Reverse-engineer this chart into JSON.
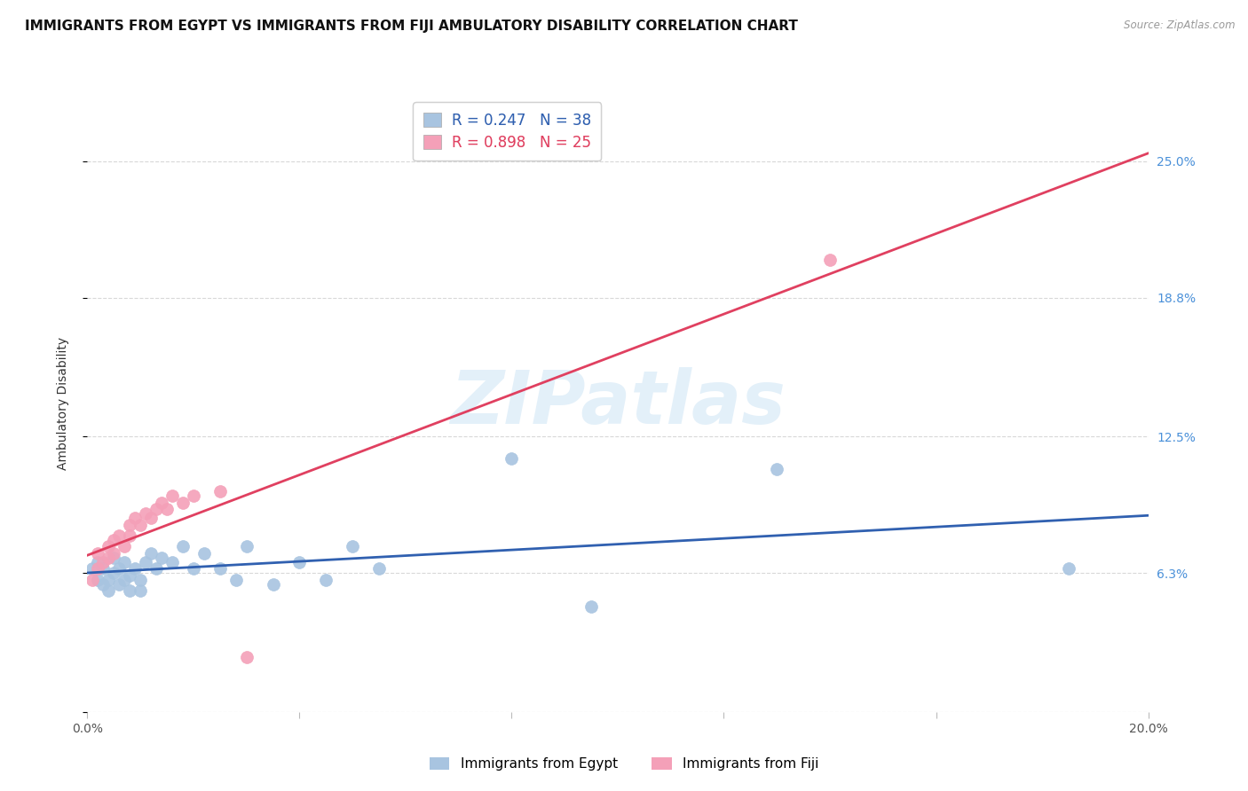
{
  "title": "IMMIGRANTS FROM EGYPT VS IMMIGRANTS FROM FIJI AMBULATORY DISABILITY CORRELATION CHART",
  "source": "Source: ZipAtlas.com",
  "ylabel": "Ambulatory Disability",
  "xlim": [
    0.0,
    0.2
  ],
  "ylim": [
    0.0,
    0.28
  ],
  "yticks": [
    0.0,
    0.063,
    0.125,
    0.188,
    0.25
  ],
  "ytick_labels": [
    "",
    "6.3%",
    "12.5%",
    "18.8%",
    "25.0%"
  ],
  "xticks": [
    0.0,
    0.04,
    0.08,
    0.12,
    0.16,
    0.2
  ],
  "xtick_labels": [
    "0.0%",
    "",
    "",
    "",
    "",
    "20.0%"
  ],
  "egypt_R": 0.247,
  "egypt_N": 38,
  "fiji_R": 0.898,
  "fiji_N": 25,
  "egypt_color": "#a8c4e0",
  "fiji_color": "#f4a0b8",
  "egypt_line_color": "#3060b0",
  "fiji_line_color": "#e04060",
  "title_fontsize": 11,
  "axis_label_fontsize": 10,
  "tick_fontsize": 10,
  "right_tick_color": "#4a90d9",
  "egypt_scatter_x": [
    0.001,
    0.002,
    0.002,
    0.003,
    0.003,
    0.004,
    0.004,
    0.005,
    0.005,
    0.006,
    0.006,
    0.007,
    0.007,
    0.008,
    0.008,
    0.009,
    0.01,
    0.01,
    0.011,
    0.012,
    0.013,
    0.014,
    0.016,
    0.018,
    0.02,
    0.022,
    0.025,
    0.028,
    0.03,
    0.035,
    0.04,
    0.045,
    0.05,
    0.055,
    0.08,
    0.095,
    0.13,
    0.185
  ],
  "egypt_scatter_y": [
    0.065,
    0.06,
    0.068,
    0.058,
    0.065,
    0.06,
    0.055,
    0.07,
    0.063,
    0.058,
    0.065,
    0.06,
    0.068,
    0.062,
    0.055,
    0.065,
    0.06,
    0.055,
    0.068,
    0.072,
    0.065,
    0.07,
    0.068,
    0.075,
    0.065,
    0.072,
    0.065,
    0.06,
    0.075,
    0.058,
    0.068,
    0.06,
    0.075,
    0.065,
    0.115,
    0.048,
    0.11,
    0.065
  ],
  "fiji_scatter_x": [
    0.001,
    0.002,
    0.002,
    0.003,
    0.004,
    0.004,
    0.005,
    0.005,
    0.006,
    0.007,
    0.008,
    0.008,
    0.009,
    0.01,
    0.011,
    0.012,
    0.013,
    0.014,
    0.015,
    0.016,
    0.018,
    0.02,
    0.025,
    0.03,
    0.14
  ],
  "fiji_scatter_y": [
    0.06,
    0.065,
    0.072,
    0.068,
    0.075,
    0.07,
    0.078,
    0.072,
    0.08,
    0.075,
    0.085,
    0.08,
    0.088,
    0.085,
    0.09,
    0.088,
    0.092,
    0.095,
    0.092,
    0.098,
    0.095,
    0.098,
    0.1,
    0.025,
    0.205
  ],
  "watermark_text": "ZIPatlas",
  "background_color": "#ffffff",
  "grid_color": "#d8d8d8"
}
